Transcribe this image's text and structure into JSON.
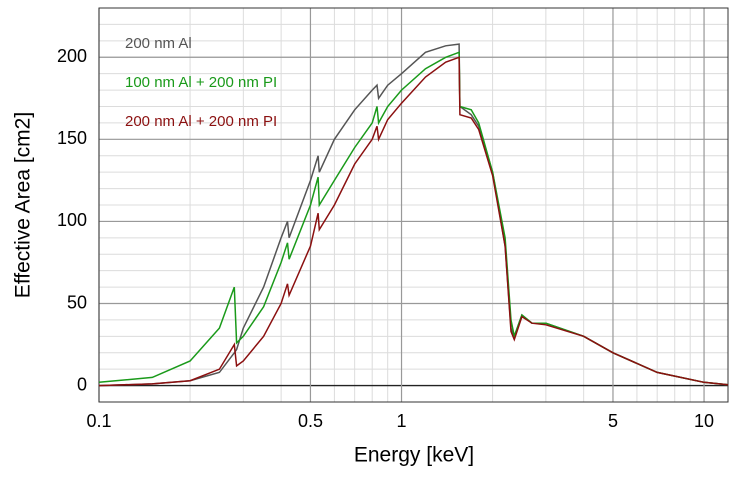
{
  "chart_data": {
    "type": "line",
    "xlabel": "Energy  [keV]",
    "ylabel": "Effective Area  [cm2]",
    "xscale": "log",
    "grid": true,
    "minor_grid": true,
    "legend": "upper left",
    "xlim": [
      0.1,
      12
    ],
    "xticks": [
      0.1,
      0.5,
      1,
      5,
      10
    ],
    "ylim": [
      -10,
      230
    ],
    "yticks": [
      0,
      50,
      100,
      150,
      200
    ],
    "x": [
      0.1,
      0.15,
      0.2,
      0.25,
      0.28,
      0.285,
      0.3,
      0.35,
      0.4,
      0.42,
      0.425,
      0.5,
      0.53,
      0.535,
      0.6,
      0.7,
      0.8,
      0.83,
      0.84,
      0.9,
      1,
      1.2,
      1.4,
      1.55,
      1.56,
      1.7,
      1.8,
      2,
      2.2,
      2.3,
      2.36,
      2.5,
      2.7,
      3,
      4,
      5,
      7,
      10,
      12
    ],
    "series": [
      {
        "name": "200 nm Al",
        "color": "#555555",
        "values": [
          0,
          1,
          3,
          8,
          20,
          22,
          35,
          60,
          90,
          100,
          90,
          125,
          140,
          130,
          150,
          168,
          180,
          183,
          175,
          183,
          190,
          203,
          207,
          208,
          170,
          165,
          158,
          130,
          85,
          35,
          30,
          43,
          38,
          38,
          30,
          20,
          8,
          2,
          0.5
        ]
      },
      {
        "name": "100 nm Al + 200 nm PI",
        "color": "#1a9a1a",
        "values": [
          2,
          5,
          15,
          35,
          60,
          26,
          30,
          48,
          75,
          87,
          77,
          110,
          127,
          110,
          125,
          145,
          160,
          170,
          160,
          170,
          180,
          193,
          200,
          203,
          170,
          168,
          160,
          130,
          90,
          40,
          30,
          43,
          38,
          38,
          30,
          20,
          8,
          2,
          0.5
        ]
      },
      {
        "name": "200 nm Al + 200 nm PI",
        "color": "#8b1010",
        "values": [
          0,
          1,
          3,
          10,
          25,
          12,
          15,
          30,
          50,
          62,
          55,
          85,
          105,
          95,
          110,
          135,
          150,
          158,
          150,
          162,
          172,
          188,
          197,
          200,
          165,
          163,
          156,
          128,
          85,
          33,
          28,
          42,
          38,
          37,
          30,
          20,
          8,
          2,
          0.5
        ]
      }
    ]
  }
}
